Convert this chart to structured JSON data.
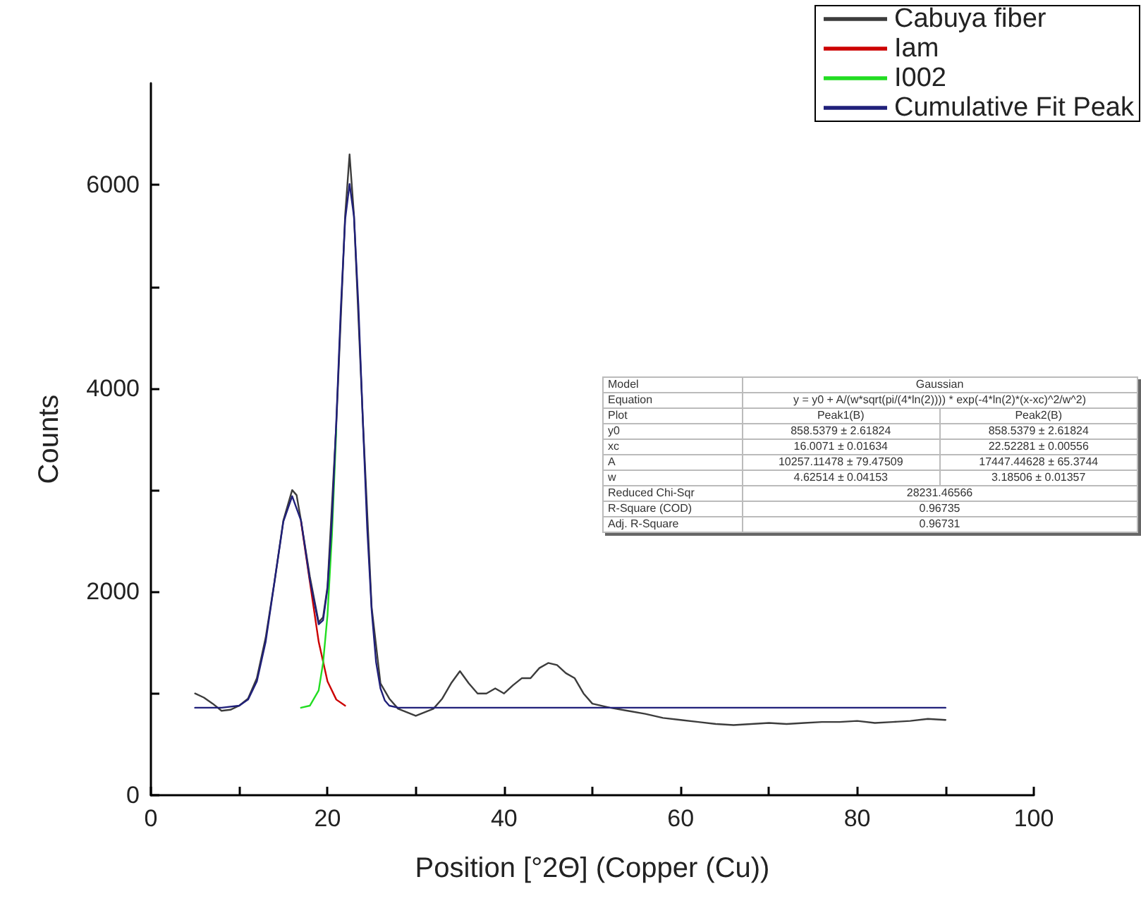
{
  "chart_data": {
    "type": "line",
    "xlabel": "Position [°2Θ] (Copper (Cu))",
    "ylabel": "Counts",
    "xlim": [
      0,
      100
    ],
    "ylim": [
      0,
      7000
    ],
    "xticks": [
      0,
      {
        "value": 10,
        "label": null
      },
      20,
      {
        "value": 30,
        "label": null
      },
      40,
      {
        "value": 50,
        "label": null
      },
      60,
      {
        "value": 70,
        "label": null
      },
      80,
      {
        "value": 90,
        "label": null
      },
      100
    ],
    "yticks": [
      0,
      {
        "value": 1000,
        "label": null
      },
      2000,
      {
        "value": 3000,
        "label": null
      },
      4000,
      {
        "value": 5000,
        "label": null
      },
      6000
    ],
    "grid": false,
    "legend": "top right",
    "marker": "none",
    "line_style": "solid",
    "series": [
      {
        "name": "Cabuya fiber",
        "color": "#3c3c3c",
        "x": [
          5,
          6,
          7,
          8,
          9,
          10,
          11,
          12,
          13,
          14,
          15,
          16,
          16.5,
          17,
          18,
          19,
          19.5,
          20,
          21,
          22,
          22.5,
          23,
          24,
          25,
          26,
          27,
          28,
          30,
          32,
          33,
          34,
          35,
          36,
          37,
          38,
          39,
          40,
          41,
          42,
          43,
          44,
          45,
          46,
          47,
          48,
          49,
          50,
          52,
          54,
          56,
          58,
          60,
          62,
          64,
          66,
          68,
          70,
          72,
          74,
          76,
          78,
          80,
          82,
          84,
          86,
          88,
          90
        ],
        "values": [
          1000,
          960,
          900,
          830,
          840,
          880,
          950,
          1150,
          1550,
          2100,
          2700,
          3000,
          2950,
          2700,
          2150,
          1700,
          1750,
          2050,
          3650,
          5700,
          6300,
          5700,
          3700,
          1850,
          1100,
          950,
          850,
          780,
          850,
          950,
          1100,
          1220,
          1100,
          1000,
          1000,
          1050,
          1000,
          1080,
          1150,
          1150,
          1250,
          1300,
          1280,
          1200,
          1150,
          1000,
          900,
          860,
          830,
          800,
          760,
          740,
          720,
          700,
          690,
          700,
          710,
          700,
          710,
          720,
          720,
          730,
          710,
          720,
          730,
          750,
          740
        ]
      },
      {
        "name": "Iam",
        "color": "#cc0000",
        "x": [
          17,
          18,
          19,
          20,
          21,
          22
        ],
        "values": [
          2690,
          2100,
          1510,
          1120,
          940,
          880
        ]
      },
      {
        "name": "I002",
        "color": "#22dd22",
        "x": [
          17,
          18,
          19,
          19.5,
          20,
          20.5,
          21
        ],
        "values": [
          860,
          880,
          1030,
          1300,
          1770,
          2550,
          3600
        ]
      },
      {
        "name": "Cumulative Fit Peak",
        "color": "#20207a",
        "x": [
          5,
          8,
          10,
          11,
          12,
          13,
          14,
          15,
          16,
          17,
          18,
          19,
          19.5,
          20,
          20.5,
          21,
          21.5,
          22,
          22.5,
          23,
          23.5,
          24,
          24.5,
          25,
          25.5,
          26,
          26.5,
          27,
          28,
          30,
          90
        ],
        "values": [
          860,
          860,
          880,
          940,
          1120,
          1510,
          2100,
          2690,
          2940,
          2700,
          2120,
          1680,
          1720,
          2030,
          2700,
          3680,
          4770,
          5660,
          6010,
          5690,
          4820,
          3690,
          2620,
          1820,
          1310,
          1050,
          930,
          880,
          860,
          860,
          860
        ]
      }
    ],
    "annotations": [
      "Model",
      "Gaussian",
      "Equation",
      "y = y0 + A/(w*sqrt(pi/(4*ln(2)))) * exp(-4*ln(2)*(x-xc)^2/w^2)",
      "Plot",
      "Peak1(B)",
      "Peak2(B)",
      "y0",
      "858.5379 ± 2.61824",
      "858.5379 ± 2.61824",
      "xc",
      "16.0071 ± 0.01634",
      "22.52281 ± 0.00556",
      "A",
      "10257.11478 ± 79.47509",
      "17447.44628 ± 65.3744",
      "w",
      "4.62514 ± 0.04153",
      "3.18506 ± 0.01357",
      "Reduced Chi-Sqr",
      "28231.46566",
      "R-Square (COD)",
      "0.96735",
      "Adj. R-Square",
      "0.96731"
    ]
  }
}
